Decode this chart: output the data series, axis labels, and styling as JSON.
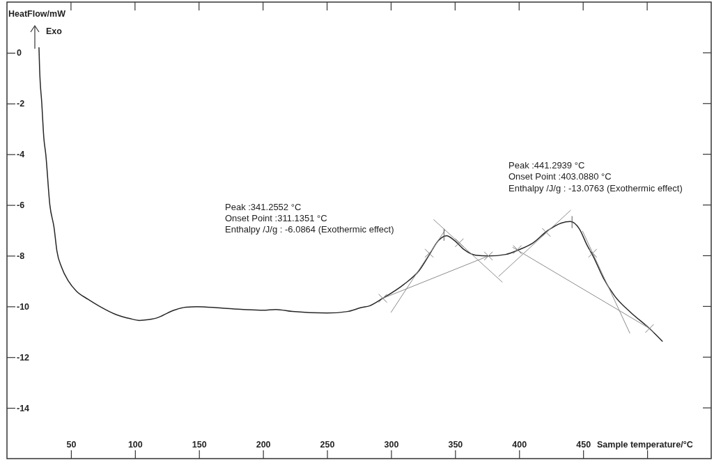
{
  "chart_data": {
    "type": "line",
    "ylabel": "HeatFlow/mW",
    "xlabel": "Sample temperature/°C",
    "annotations": [
      "Peak :341.2552 °C",
      "Onset Point :311.1351 °C",
      "Enthalpy /J/g : -6.0864 (Exothermic effect)",
      "Peak :441.2939 °C",
      "Onset Point :403.0880 °C",
      "Enthalpy /J/g : -13.0763 (Exothermic effect)",
      "Exo"
    ],
    "xlim": [
      0,
      550
    ],
    "ylim": [
      -16,
      2
    ],
    "xticks": [
      50,
      100,
      150,
      200,
      250,
      300,
      350,
      400,
      450,
      {
        "value": 500,
        "label": null
      }
    ],
    "yticks": [
      0,
      -2,
      -4,
      -6,
      -8,
      -10,
      -12,
      -14
    ],
    "series": [
      {
        "color": "#262626",
        "x": [
          25,
          25.5,
          27.2,
          28.8,
          30.3,
          33.5,
          36.8,
          39,
          42.6,
          48,
          54.3,
          63.4,
          72.5,
          85.2,
          96,
          103.3,
          110.5,
          117.8,
          121.4,
          130.4,
          139.5,
          148.5,
          166.7,
          184.8,
          200,
          210,
          223,
          250,
          266,
          277,
          283,
          293.5,
          310,
          322,
          330,
          337,
          343.3,
          349.5,
          357,
          366,
          376,
          389.5,
          400,
          411,
          422,
          433,
          440,
          447,
          453,
          458,
          465.6,
          474.6,
          487,
          501.8,
          511.8
        ],
        "values": [
          0.2,
          -0.64,
          -2,
          -3.36,
          -4,
          -6,
          -6.9,
          -7.81,
          -8.45,
          -9.0,
          -9.4,
          -9.72,
          -10.0,
          -10.32,
          -10.48,
          -10.55,
          -10.52,
          -10.44,
          -10.36,
          -10.15,
          -10.03,
          -10.01,
          -10.06,
          -10.12,
          -10.15,
          -10.12,
          -10.2,
          -10.26,
          -10.2,
          -10.04,
          -9.98,
          -9.68,
          -9.13,
          -8.58,
          -7.95,
          -7.4,
          -7.21,
          -7.4,
          -7.76,
          -7.98,
          -8.01,
          -7.95,
          -7.76,
          -7.49,
          -7.02,
          -6.71,
          -6.65,
          -6.94,
          -7.58,
          -8.04,
          -8.86,
          -9.59,
          -10.23,
          -10.87,
          -11.37
        ]
      },
      {
        "color": "#8c8c8c",
        "x": [
          293.5,
          376
        ],
        "values": [
          -9.68,
          -8.01
        ]
      },
      {
        "color": "#8c8c8c",
        "x": [
          300,
          342
        ],
        "values": [
          -10.23,
          -7.0
        ]
      },
      {
        "color": "#8c8c8c",
        "x": [
          333.3,
          386.8
        ],
        "values": [
          -6.58,
          -9.04
        ]
      },
      {
        "color": "#8c8c8c",
        "x": [
          395,
          501.8
        ],
        "values": [
          -7.67,
          -10.87
        ]
      },
      {
        "color": "#8c8c8c",
        "x": [
          384.1,
          440.2
        ],
        "values": [
          -8.81,
          -6.21
        ]
      },
      {
        "color": "#8c8c8c",
        "x": [
          449.5,
          486.4
        ],
        "values": [
          -7.03,
          -11.05
        ]
      },
      {
        "color": "#595959",
        "x": [
          341.3,
          341.3
        ],
        "values": [
          -6.95,
          -7.4
        ]
      },
      {
        "color": "#595959",
        "x": [
          441.3,
          441.3
        ],
        "values": [
          -6.45,
          -6.9
        ]
      },
      {
        "type": "scatter",
        "marker": "cross",
        "color": "#7f7f7f",
        "x": [
          293.5,
          329.7,
          353.3,
          376,
          398.6,
          421.2,
          457.4,
          501.8
        ],
        "values": [
          -9.68,
          -7.9,
          -7.49,
          -8.01,
          -7.76,
          -7.08,
          -7.9,
          -10.87
        ]
      }
    ]
  }
}
